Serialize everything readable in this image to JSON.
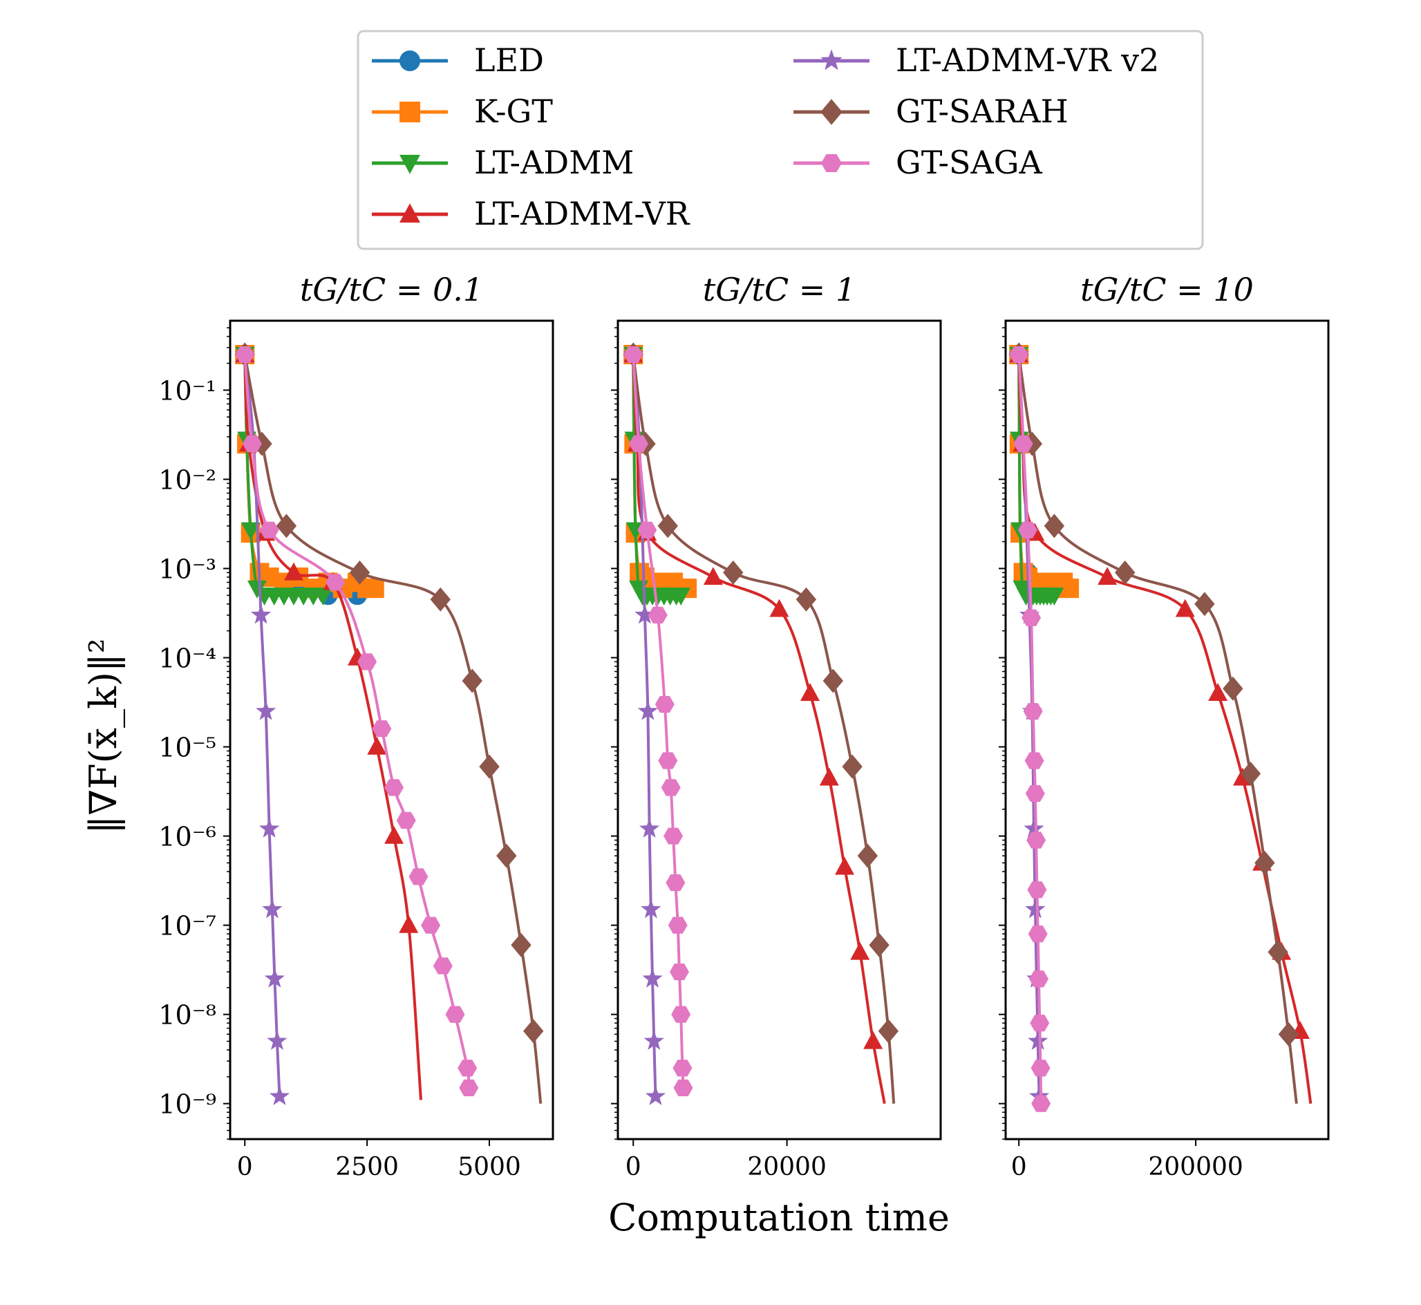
{
  "figure": {
    "ylabel": "‖∇F(x̄_k)‖²",
    "xlabel": "Computation time"
  },
  "legend": [
    {
      "name": "LED",
      "color": "#1f77b4",
      "marker": "circle"
    },
    {
      "name": "K-GT",
      "color": "#ff7f0e",
      "marker": "square"
    },
    {
      "name": "LT-ADMM",
      "color": "#2ca02c",
      "marker": "triangle-down"
    },
    {
      "name": "LT-ADMM-VR",
      "color": "#d62728",
      "marker": "triangle-up"
    },
    {
      "name": "LT-ADMM-VR v2",
      "color": "#9467bd",
      "marker": "star"
    },
    {
      "name": "GT-SARAH",
      "color": "#8c564b",
      "marker": "diamond"
    },
    {
      "name": "GT-SAGA",
      "color": "#e377c2",
      "marker": "hexagon"
    }
  ],
  "chart_data": [
    {
      "type": "line",
      "title": "tG/tC = 0.1",
      "y_scale": "log",
      "ylim": [
        4e-10,
        0.6
      ],
      "xlim": [
        -300,
        6300
      ],
      "xticks": [
        0,
        2500,
        5000
      ],
      "xtick_labels": [
        "0",
        "2500",
        "5000"
      ],
      "yticks": [
        -9,
        -8,
        -7,
        -6,
        -5,
        -4,
        -3,
        -2,
        -1
      ],
      "series": [
        {
          "name": "LED",
          "x": [
            0,
            40,
            120,
            300,
            500,
            800,
            1100,
            1400,
            1700,
            2000,
            2300,
            2500
          ],
          "y": [
            0.25,
            0.025,
            0.0025,
            0.0009,
            0.0008,
            0.0007,
            0.0007,
            0.0006,
            0.0005,
            0.0006,
            0.0005,
            0.0006
          ]
        },
        {
          "name": "K-GT",
          "x": [
            0,
            40,
            120,
            300,
            500,
            800,
            1100,
            1400,
            1700,
            2000,
            2300,
            2500,
            2650
          ],
          "y": [
            0.25,
            0.025,
            0.0025,
            0.0009,
            0.0008,
            0.0007,
            0.0008,
            0.0006,
            0.0007,
            0.0006,
            0.0007,
            0.0006,
            0.0006
          ]
        },
        {
          "name": "LT-ADMM",
          "x": [
            0,
            40,
            120,
            250,
            400,
            600,
            800,
            1000,
            1200,
            1400,
            1600
          ],
          "y": [
            0.25,
            0.028,
            0.0027,
            0.0006,
            0.0005,
            0.0005,
            0.0005,
            0.0005,
            0.0005,
            0.0005,
            0.0005
          ]
        },
        {
          "name": "LT-ADMM-VR",
          "x": [
            0,
            80,
            420,
            1000,
            1800,
            2300,
            2700,
            3050,
            3350,
            3600
          ],
          "y": [
            0.25,
            0.025,
            0.0025,
            0.0009,
            0.0007,
            0.0001,
            1e-05,
            1e-06,
            1e-07,
            1.1e-09
          ]
        },
        {
          "name": "LT-ADMM-VR v2",
          "x": [
            0,
            180,
            330,
            430,
            500,
            560,
            610,
            660,
            710
          ],
          "y": [
            0.25,
            0.025,
            0.0003,
            2.5e-05,
            1.2e-06,
            1.5e-07,
            2.5e-08,
            5e-09,
            1.2e-09
          ]
        },
        {
          "name": "GT-SARAH",
          "x": [
            0,
            350,
            850,
            2350,
            4000,
            4650,
            5000,
            5350,
            5650,
            5900,
            6050
          ],
          "y": [
            0.25,
            0.025,
            0.003,
            0.0009,
            0.00045,
            5.5e-05,
            6e-06,
            6e-07,
            6e-08,
            6.5e-09,
            1e-09
          ]
        },
        {
          "name": "GT-SAGA",
          "x": [
            0,
            150,
            500,
            1850,
            2500,
            2800,
            3050,
            3300,
            3550,
            3800,
            4050,
            4300,
            4550,
            4580
          ],
          "y": [
            0.25,
            0.025,
            0.0027,
            0.0007,
            9e-05,
            1.6e-05,
            3.5e-06,
            1.5e-06,
            3.5e-07,
            1e-07,
            3.5e-08,
            1e-08,
            2.5e-09,
            1.5e-09
          ]
        }
      ]
    },
    {
      "type": "line",
      "title": "tG/tC = 1",
      "y_scale": "log",
      "ylim": [
        4e-10,
        0.6
      ],
      "xlim": [
        -2000,
        40000
      ],
      "xticks": [
        0,
        20000
      ],
      "xtick_labels": [
        "0",
        "20000"
      ],
      "yticks": [
        -9,
        -8,
        -7,
        -6,
        -5,
        -4,
        -3,
        -2,
        -1
      ],
      "series": [
        {
          "name": "LED",
          "x": [
            0,
            100,
            300,
            800,
            1500,
            2200,
            3000,
            3800,
            4500,
            5200
          ],
          "y": [
            0.25,
            0.025,
            0.0025,
            0.0009,
            0.0008,
            0.0007,
            0.0006,
            0.0007,
            0.0006,
            0.0006
          ]
        },
        {
          "name": "K-GT",
          "x": [
            0,
            100,
            300,
            800,
            1500,
            2200,
            3000,
            3800,
            4500,
            5200,
            6000,
            7000
          ],
          "y": [
            0.25,
            0.025,
            0.0025,
            0.0009,
            0.0008,
            0.0007,
            0.0006,
            0.0007,
            0.0006,
            0.0007,
            0.0006,
            0.0006
          ]
        },
        {
          "name": "LT-ADMM",
          "x": [
            0,
            100,
            300,
            700,
            1200,
            1800,
            2500,
            3200,
            4000,
            4800,
            5600,
            6200
          ],
          "y": [
            0.25,
            0.028,
            0.0027,
            0.0006,
            0.0005,
            0.0005,
            0.0005,
            0.0005,
            0.0005,
            0.0005,
            0.0005,
            0.0005
          ]
        },
        {
          "name": "LT-ADMM-VR",
          "x": [
            0,
            500,
            1800,
            10400,
            19000,
            23000,
            25500,
            27500,
            29500,
            31200,
            32700
          ],
          "y": [
            0.25,
            0.025,
            0.0025,
            0.0008,
            0.00035,
            4e-05,
            4.5e-06,
            4.5e-07,
            5e-08,
            5e-09,
            1e-09
          ]
        },
        {
          "name": "LT-ADMM-VR v2",
          "x": [
            0,
            800,
            1500,
            1900,
            2100,
            2300,
            2500,
            2700,
            2900
          ],
          "y": [
            0.25,
            0.025,
            0.0003,
            2.5e-05,
            1.2e-06,
            1.5e-07,
            2.5e-08,
            5e-09,
            1.2e-09
          ]
        },
        {
          "name": "GT-SARAH",
          "x": [
            0,
            1600,
            4500,
            13000,
            22500,
            26000,
            28500,
            30500,
            32000,
            33200,
            33900
          ],
          "y": [
            0.25,
            0.025,
            0.003,
            0.0009,
            0.00045,
            5.5e-05,
            6e-06,
            6e-07,
            6e-08,
            6.5e-09,
            1e-09
          ]
        },
        {
          "name": "GT-SAGA",
          "x": [
            0,
            700,
            1800,
            3200,
            4100,
            4500,
            4900,
            5200,
            5500,
            5800,
            6000,
            6200,
            6400,
            6500
          ],
          "y": [
            0.25,
            0.025,
            0.0027,
            0.0003,
            3e-05,
            7e-06,
            3.5e-06,
            1e-06,
            3e-07,
            1e-07,
            3e-08,
            1e-08,
            2.5e-09,
            1.5e-09
          ]
        }
      ]
    },
    {
      "type": "line",
      "title": "tG/tC = 10",
      "y_scale": "log",
      "ylim": [
        4e-10,
        0.6
      ],
      "xlim": [
        -15000,
        350000
      ],
      "xticks": [
        0,
        200000
      ],
      "xtick_labels": [
        "0",
        "200000"
      ],
      "yticks": [
        -9,
        -8,
        -7,
        -6,
        -5,
        -4,
        -3,
        -2,
        -1
      ],
      "series": [
        {
          "name": "LED",
          "x": [
            0,
            500,
            1500,
            5000,
            10000,
            15000,
            20000,
            25000,
            30000,
            35000,
            40000
          ],
          "y": [
            0.25,
            0.025,
            0.0025,
            0.0009,
            0.0009,
            0.0007,
            0.0006,
            0.0007,
            0.0006,
            0.0006,
            0.0006
          ]
        },
        {
          "name": "K-GT",
          "x": [
            0,
            500,
            1500,
            5000,
            10000,
            15000,
            20000,
            25000,
            30000,
            35000,
            40000,
            50000,
            57000
          ],
          "y": [
            0.25,
            0.025,
            0.0025,
            0.0009,
            0.0008,
            0.0007,
            0.0006,
            0.0007,
            0.0006,
            0.0007,
            0.0006,
            0.0007,
            0.0006
          ]
        },
        {
          "name": "LT-ADMM",
          "x": [
            0,
            500,
            1500,
            4000,
            8000,
            12000,
            16000,
            20000,
            24000,
            28000,
            32000,
            36000,
            40000
          ],
          "y": [
            0.25,
            0.028,
            0.0027,
            0.0006,
            0.0005,
            0.0005,
            0.0005,
            0.0005,
            0.0005,
            0.0005,
            0.0005,
            0.0005,
            0.0005
          ]
        },
        {
          "name": "LT-ADMM-VR",
          "x": [
            0,
            4000,
            18000,
            100000,
            188000,
            225000,
            253000,
            275000,
            297000,
            318000,
            330000
          ],
          "y": [
            0.25,
            0.025,
            0.0025,
            0.0008,
            0.00035,
            4e-05,
            4.5e-06,
            5e-07,
            5e-08,
            6.5e-09,
            1e-09
          ]
        },
        {
          "name": "LT-ADMM-VR v2",
          "x": [
            0,
            5000,
            12000,
            15000,
            17000,
            18500,
            20000,
            21500,
            23000
          ],
          "y": [
            0.25,
            0.025,
            0.0003,
            2.5e-05,
            1.2e-06,
            1.5e-07,
            2.5e-08,
            5e-09,
            1.2e-09
          ]
        },
        {
          "name": "GT-SARAH",
          "x": [
            0,
            15000,
            40000,
            120000,
            210000,
            242000,
            262000,
            278000,
            293000,
            305000,
            314000
          ],
          "y": [
            0.25,
            0.025,
            0.003,
            0.0009,
            0.0004,
            4.5e-05,
            5e-06,
            5e-07,
            5e-08,
            6e-09,
            1e-09
          ]
        },
        {
          "name": "GT-SAGA",
          "x": [
            0,
            5000,
            10000,
            14000,
            16000,
            17500,
            18500,
            19500,
            20500,
            21500,
            22500,
            23500,
            24500,
            25000
          ],
          "y": [
            0.25,
            0.025,
            0.0027,
            0.00028,
            2.5e-05,
            7e-06,
            3e-06,
            9e-07,
            2.5e-07,
            8e-08,
            2.5e-08,
            8e-09,
            2.5e-09,
            1e-09
          ]
        }
      ]
    }
  ]
}
